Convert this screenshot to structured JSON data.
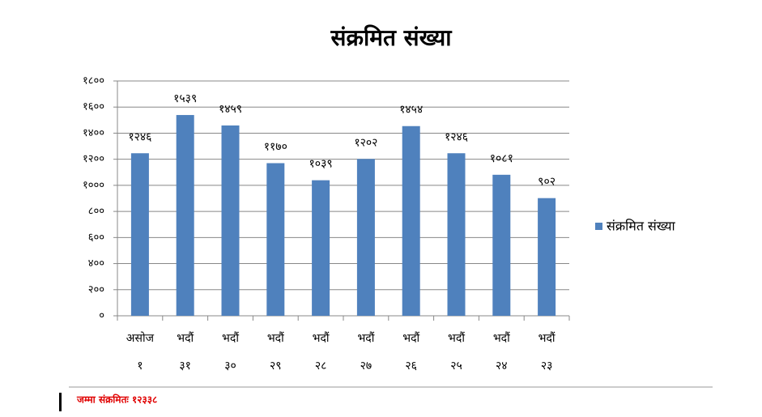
{
  "chart_data": {
    "type": "bar",
    "title": "संक्रमित संख्या",
    "categories": [
      [
        "असोज",
        "१"
      ],
      [
        "भदौं",
        "३१"
      ],
      [
        "भदौं",
        "३०"
      ],
      [
        "भदौं",
        "२९"
      ],
      [
        "भदौं",
        "२८"
      ],
      [
        "भदौं",
        "२७"
      ],
      [
        "भदौं",
        "२६"
      ],
      [
        "भदौं",
        "२५"
      ],
      [
        "भदौं",
        "२४"
      ],
      [
        "भदौं",
        "२३"
      ]
    ],
    "series": [
      {
        "name": "संक्रमित संख्या",
        "color": "#4f81bd",
        "values": [
          1246,
          1539,
          1459,
          1170,
          1039,
          1202,
          1454,
          1246,
          1081,
          902
        ],
        "value_labels": [
          "१२४६",
          "१५३९",
          "१४५९",
          "११७०",
          "१०३९",
          "१२०२",
          "१४५४",
          "१२४६",
          "१०८१",
          "९०२"
        ]
      }
    ],
    "ylim": [
      0,
      1800
    ],
    "yticks": [
      {
        "value": 0,
        "label": "०"
      },
      {
        "value": 200,
        "label": "२००"
      },
      {
        "value": 400,
        "label": "४००"
      },
      {
        "value": 600,
        "label": "६००"
      },
      {
        "value": 800,
        "label": "८००"
      },
      {
        "value": 1000,
        "label": "१०००"
      },
      {
        "value": 1200,
        "label": "१२००"
      },
      {
        "value": 1400,
        "label": "१४००"
      },
      {
        "value": 1600,
        "label": "१६००"
      },
      {
        "value": 1800,
        "label": "१८००"
      }
    ],
    "grid": true,
    "legend": "right"
  },
  "footer_note": "जम्मा संक्रमितः १२३३८"
}
